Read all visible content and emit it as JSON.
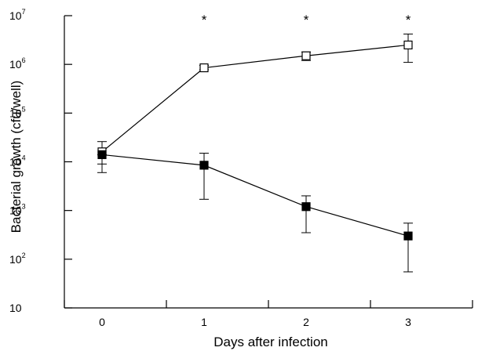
{
  "chart_data": {
    "type": "line",
    "title": "",
    "xlabel": "Days after infection",
    "ylabel": "Bacterial growth (cfu/well)",
    "yscale": "log10",
    "ylim": [
      10,
      10000000
    ],
    "xlim": [
      -0.5,
      3.5
    ],
    "x": [
      0,
      1,
      2,
      3
    ],
    "x_ticks": [
      {
        "value": 0,
        "label": "0"
      },
      {
        "value": 1,
        "label": "1"
      },
      {
        "value": 2,
        "label": "2"
      },
      {
        "value": 3,
        "label": "3"
      }
    ],
    "y_ticks": [
      {
        "value": 10,
        "base": "10",
        "exp": ""
      },
      {
        "value": 100,
        "base": "10",
        "exp": "2"
      },
      {
        "value": 1000,
        "base": "10",
        "exp": "3"
      },
      {
        "value": 10000,
        "base": "10",
        "exp": "4"
      },
      {
        "value": 100000,
        "base": "10",
        "exp": "5"
      },
      {
        "value": 1000000,
        "base": "10",
        "exp": "6"
      },
      {
        "value": 10000000,
        "base": "10",
        "exp": "7"
      }
    ],
    "series": [
      {
        "marker": "open-square",
        "values": [
          16000,
          850000,
          1500000,
          2500000
        ],
        "err_low": [
          9000,
          780000,
          1200000,
          1100000
        ],
        "err_high": [
          26000,
          950000,
          1800000,
          4200000
        ]
      },
      {
        "marker": "filled-square",
        "values": [
          14000,
          8500,
          1200,
          300
        ],
        "err_low": [
          6000,
          1700,
          350,
          55
        ],
        "err_high": [
          14000,
          15000,
          2000,
          550
        ]
      }
    ],
    "annotations": [
      {
        "x": 1,
        "text": "*"
      },
      {
        "x": 2,
        "text": "*"
      },
      {
        "x": 3,
        "text": "*"
      }
    ],
    "grid": false,
    "legend": "none"
  }
}
